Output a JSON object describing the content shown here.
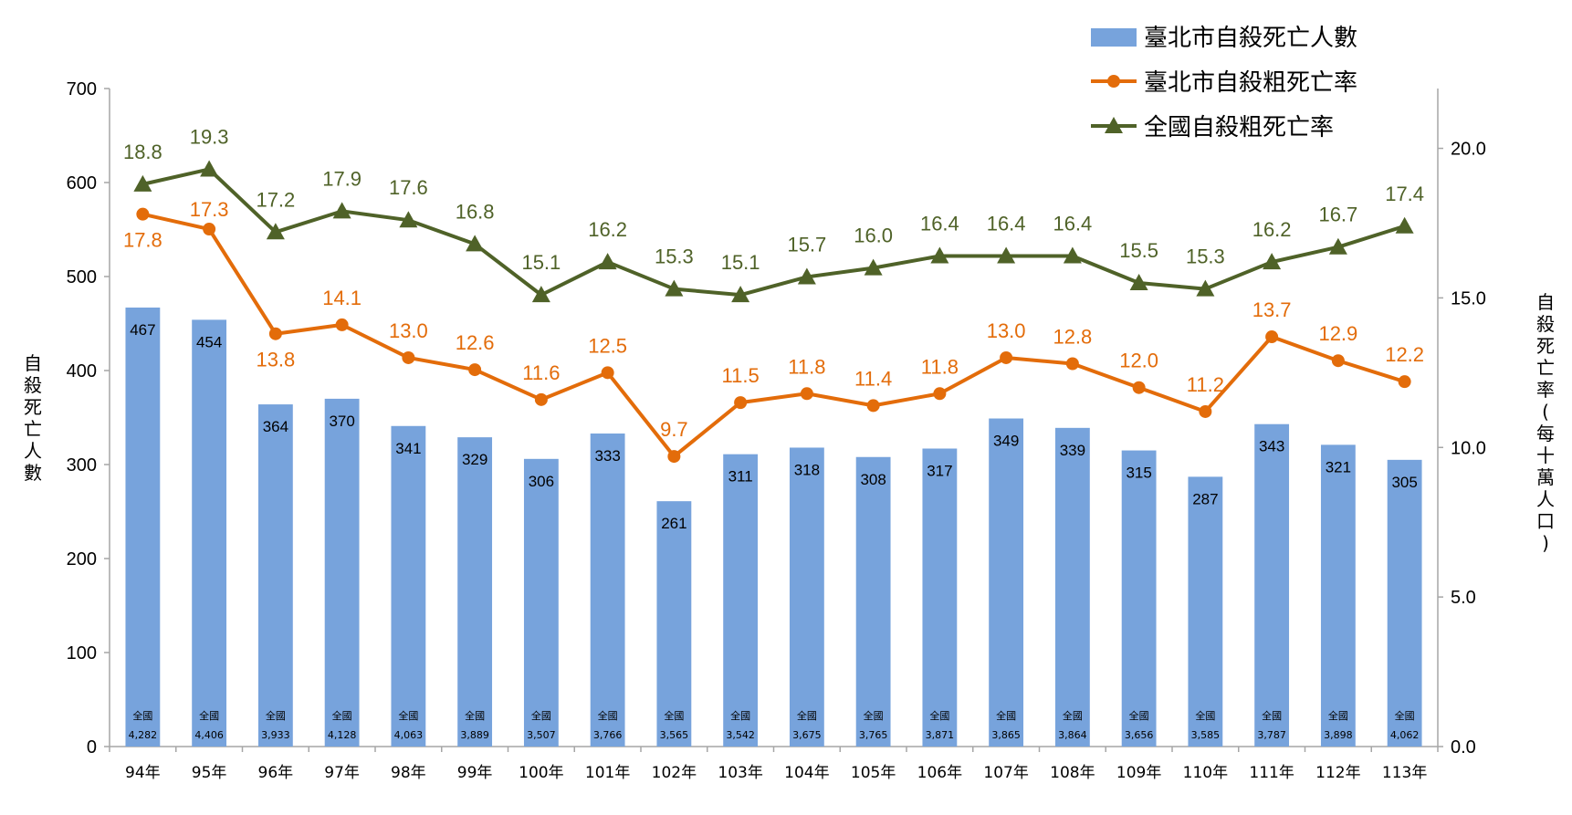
{
  "colors": {
    "bar": "#77a3dc",
    "taipei_rate": "#e36c0a",
    "national_rate": "#4f6228",
    "axis": "#a6a6a6"
  },
  "chart_data": {
    "type": "bar",
    "categories": [
      "94年",
      "95年",
      "96年",
      "97年",
      "98年",
      "99年",
      "100年",
      "101年",
      "102年",
      "103年",
      "104年",
      "105年",
      "106年",
      "107年",
      "108年",
      "109年",
      "110年",
      "111年",
      "112年",
      "113年"
    ],
    "series": [
      {
        "name": "臺北市自殺死亡人數",
        "type": "bar",
        "axis": "left",
        "values": [
          467,
          454,
          364,
          370,
          341,
          329,
          306,
          333,
          261,
          311,
          318,
          308,
          317,
          349,
          339,
          315,
          287,
          343,
          321,
          305
        ]
      },
      {
        "name": "臺北市自殺粗死亡率",
        "type": "line",
        "axis": "right",
        "marker": "circle",
        "values": [
          17.8,
          17.3,
          13.8,
          14.1,
          13.0,
          12.6,
          11.6,
          12.5,
          9.7,
          11.5,
          11.8,
          11.4,
          11.8,
          13.0,
          12.8,
          12.0,
          11.2,
          13.7,
          12.9,
          12.2
        ]
      },
      {
        "name": "全國自殺粗死亡率",
        "type": "line",
        "axis": "right",
        "marker": "triangle",
        "values": [
          18.8,
          19.3,
          17.2,
          17.9,
          17.6,
          16.8,
          15.1,
          16.2,
          15.3,
          15.1,
          15.7,
          16.0,
          16.4,
          16.4,
          16.4,
          15.5,
          15.3,
          16.2,
          16.7,
          17.4
        ]
      }
    ],
    "national_deaths": {
      "prefix": "全國",
      "values": [
        "4,282",
        "4,406",
        "3,933",
        "4,128",
        "4,063",
        "3,889",
        "3,507",
        "3,766",
        "3,565",
        "3,542",
        "3,675",
        "3,765",
        "3,871",
        "3,865",
        "3,864",
        "3,656",
        "3,585",
        "3,787",
        "3,898",
        "4,062"
      ]
    },
    "taipei_rate_labels": [
      "17.8",
      "17.3",
      "13.8",
      "14.1",
      "13.0",
      "12.6",
      "11.6",
      "12.5",
      "9.7",
      "11.5",
      "11.8",
      "11.4",
      "11.8",
      "13.0",
      "12.8",
      "12.0",
      "11.2",
      "13.7",
      "12.9",
      "12.2"
    ],
    "national_rate_labels": [
      "18.8",
      "19.3",
      "17.2",
      "17.9",
      "17.6",
      "16.8",
      "15.1",
      "16.2",
      "15.3",
      "15.1",
      "15.7",
      "16.0",
      "16.4",
      "16.4",
      "16.4",
      "15.5",
      "15.3",
      "16.2",
      "16.7",
      "17.4"
    ],
    "y_left": {
      "label": "自殺死亡人數",
      "lim": [
        0,
        700
      ],
      "ticks": [
        "0",
        "100",
        "200",
        "300",
        "400",
        "500",
        "600",
        "700"
      ]
    },
    "y_right": {
      "label": "自殺死亡率(每十萬人口)",
      "lim": [
        0,
        22
      ],
      "ticks": [
        "0.0",
        "5.0",
        "10.0",
        "15.0",
        "20.0"
      ]
    },
    "legend_position": "top-right",
    "grid": false
  }
}
